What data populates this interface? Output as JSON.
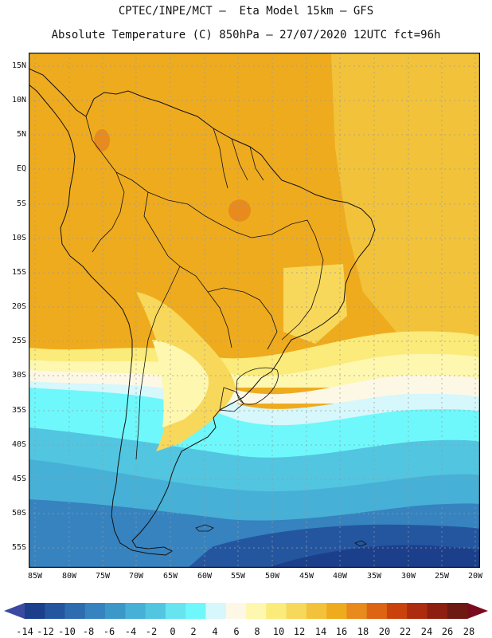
{
  "header": {
    "line1": "CPTEC/INPE/MCT –  Eta Model 15km – GFS",
    "line2": "Absolute Temperature (C) 850hPa – 27/07/2020 12UTC fct=96h"
  },
  "map": {
    "region": "South America",
    "lat_labels": [
      "15N",
      "10N",
      "5N",
      "EQ",
      "5S",
      "10S",
      "15S",
      "20S",
      "25S",
      "30S",
      "35S",
      "40S",
      "45S",
      "50S",
      "55S"
    ],
    "lon_labels": [
      "85W",
      "80W",
      "75W",
      "70W",
      "65W",
      "60W",
      "55W",
      "50W",
      "45W",
      "40W",
      "35W",
      "30W",
      "25W",
      "20W"
    ],
    "lat_range": [
      -57,
      16
    ],
    "lon_range": [
      -86,
      -20
    ]
  },
  "colorbar": {
    "labels": [
      "-14",
      "-12",
      "-10",
      "-8",
      "-6",
      "-4",
      "-2",
      "0",
      "2",
      "4",
      "6",
      "8",
      "10",
      "12",
      "14",
      "16",
      "18",
      "20",
      "22",
      "24",
      "26",
      "28"
    ],
    "colors": [
      "#1c3f8c",
      "#2456a0",
      "#2e6cb0",
      "#3683bf",
      "#3c98c9",
      "#46b0d6",
      "#52c5e0",
      "#66e4ef",
      "#6ef8fb",
      "#d6f7fb",
      "#fdf8e6",
      "#fdf7b0",
      "#fbeb7a",
      "#f8d85a",
      "#f2c33a",
      "#efab1e",
      "#e88a1c",
      "#dd6412",
      "#c9420c",
      "#ad2b0e",
      "#8e1f10",
      "#6e1a12"
    ],
    "low_arrow_color": "#3a4aa0",
    "high_arrow_color": "#7a0b1e"
  }
}
